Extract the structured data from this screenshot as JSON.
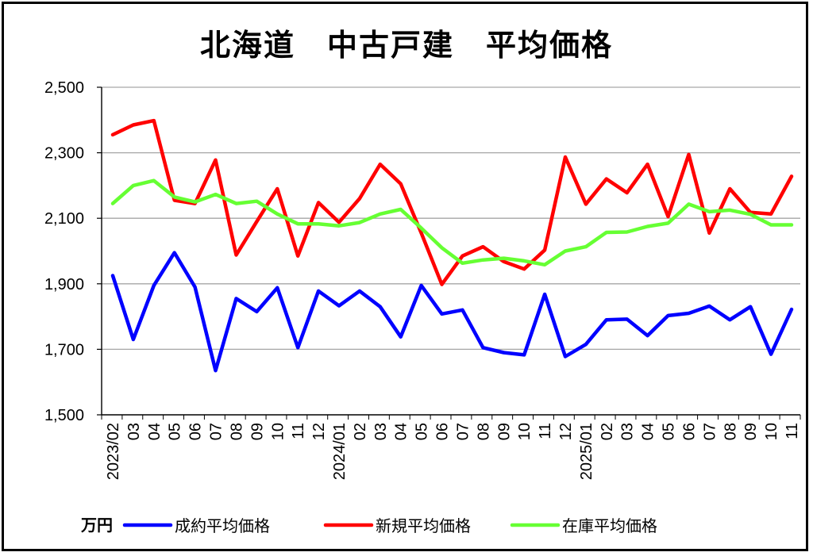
{
  "chart_data": {
    "type": "line",
    "title": "北海道　中古戸建　平均価格",
    "unit": "万円",
    "ylim": [
      1500,
      2500
    ],
    "yticks": [
      "1,500",
      "1,700",
      "1,900",
      "2,100",
      "2,300",
      "2,500"
    ],
    "grid": true,
    "legend_placement": "bottom",
    "categories": [
      "2023/02",
      "03",
      "04",
      "05",
      "06",
      "07",
      "08",
      "09",
      "10",
      "11",
      "12",
      "2024/01",
      "02",
      "03",
      "04",
      "05",
      "06",
      "07",
      "08",
      "09",
      "10",
      "11",
      "12",
      "2025/01",
      "02",
      "03",
      "04",
      "05",
      "06",
      "07",
      "08",
      "09",
      "10",
      "11"
    ],
    "series": [
      {
        "name": "成約平均価格",
        "color": "#0000ff",
        "values": [
          1925,
          1730,
          1895,
          1995,
          1890,
          1635,
          1855,
          1815,
          1888,
          1705,
          1878,
          1833,
          1878,
          1830,
          1738,
          1895,
          1808,
          1820,
          1705,
          1690,
          1683,
          1868,
          1678,
          1715,
          1790,
          1792,
          1742,
          1803,
          1810,
          1832,
          1790,
          1830,
          1685,
          1822
        ]
      },
      {
        "name": "新規平均価格",
        "color": "#ff0000",
        "values": [
          2355,
          2385,
          2398,
          2155,
          2145,
          2278,
          1988,
          2090,
          2190,
          1985,
          2148,
          2088,
          2160,
          2265,
          2205,
          2055,
          1898,
          1985,
          2013,
          1968,
          1945,
          2003,
          2287,
          2143,
          2220,
          2178,
          2265,
          2105,
          2295,
          2055,
          2190,
          2118,
          2113,
          2228
        ]
      },
      {
        "name": "在庫平均価格",
        "color": "#66ff33",
        "values": [
          2145,
          2200,
          2215,
          2165,
          2150,
          2173,
          2145,
          2152,
          2113,
          2083,
          2083,
          2077,
          2087,
          2113,
          2127,
          2070,
          2010,
          1963,
          1973,
          1978,
          1970,
          1958,
          2000,
          2013,
          2057,
          2058,
          2075,
          2085,
          2143,
          2120,
          2125,
          2112,
          2080,
          2080
        ]
      }
    ]
  }
}
